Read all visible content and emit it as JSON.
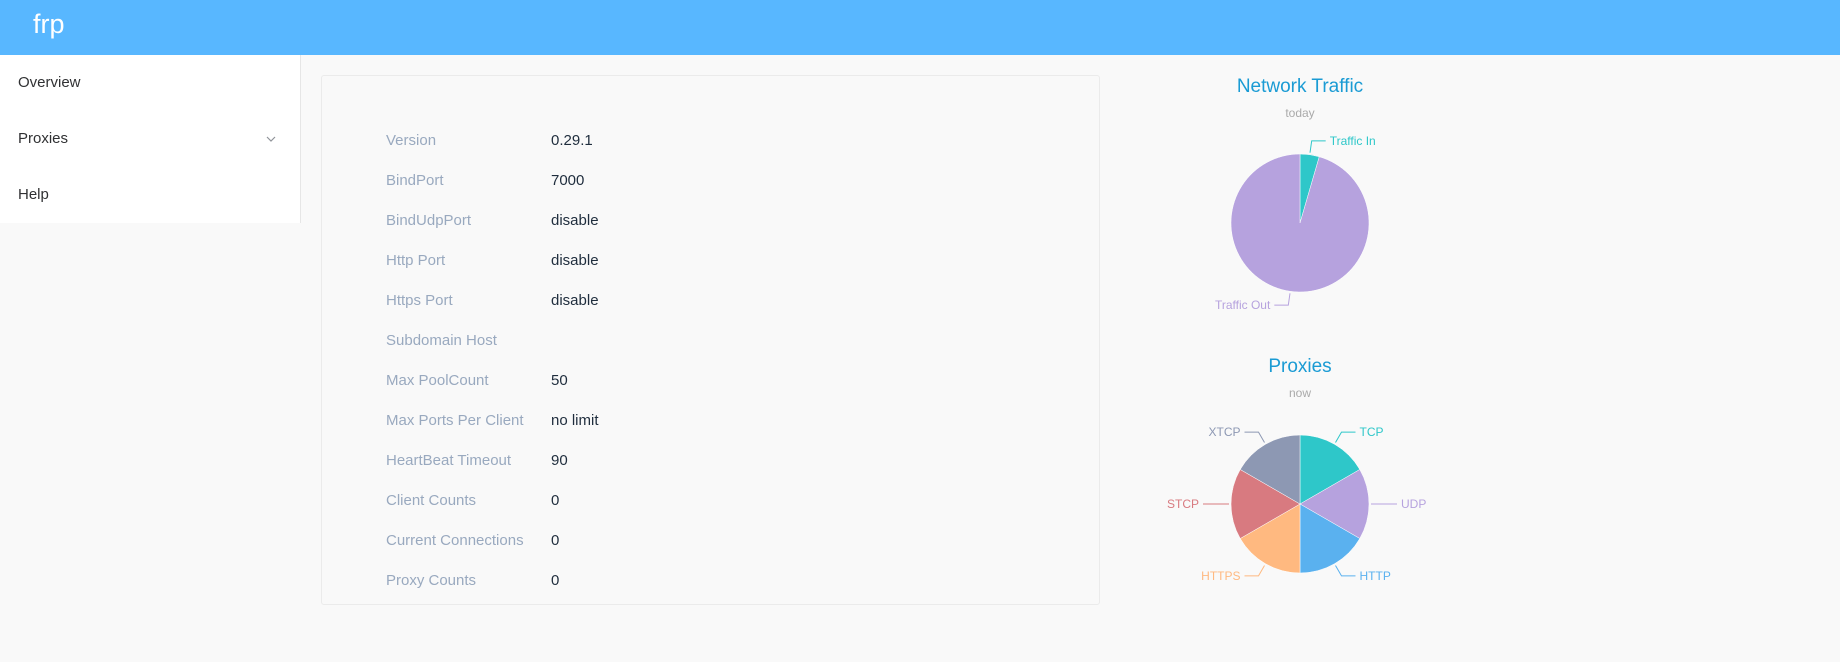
{
  "app": {
    "brand": "frp"
  },
  "sidebar": {
    "items": [
      {
        "label": "Overview"
      },
      {
        "label": "Proxies"
      },
      {
        "label": "Help"
      }
    ]
  },
  "overview": {
    "rows": [
      {
        "label": "Version",
        "value": "0.29.1"
      },
      {
        "label": "BindPort",
        "value": "7000"
      },
      {
        "label": "BindUdpPort",
        "value": "disable"
      },
      {
        "label": "Http Port",
        "value": "disable"
      },
      {
        "label": "Https Port",
        "value": "disable"
      },
      {
        "label": "Subdomain Host",
        "value": ""
      },
      {
        "label": "Max PoolCount",
        "value": "50"
      },
      {
        "label": "Max Ports Per Client",
        "value": "no limit"
      },
      {
        "label": "HeartBeat Timeout",
        "value": "90"
      },
      {
        "label": "Client Counts",
        "value": "0"
      },
      {
        "label": "Current Connections",
        "value": "0"
      },
      {
        "label": "Proxy Counts",
        "value": "0"
      }
    ]
  },
  "colors": {
    "topbar": "#58b7ff",
    "traffic_in": "#2ec7c9",
    "traffic_out": "#b6a2de",
    "tcp": "#2ec7c9",
    "udp": "#b6a2de",
    "http": "#5ab1ef",
    "https": "#ffb980",
    "stcp": "#d87a80",
    "xtcp": "#8d98b3"
  },
  "chart_data": [
    {
      "type": "pie",
      "title": "Network Traffic",
      "subtitle": "today",
      "categories": [
        "Traffic In",
        "Traffic Out"
      ],
      "values": [
        4.5,
        95.5
      ],
      "colors": [
        "#2ec7c9",
        "#b6a2de"
      ]
    },
    {
      "type": "pie",
      "title": "Proxies",
      "subtitle": "now",
      "categories": [
        "TCP",
        "UDP",
        "HTTP",
        "HTTPS",
        "STCP",
        "XTCP"
      ],
      "values": [
        1,
        1,
        1,
        1,
        1,
        1
      ],
      "colors": [
        "#2ec7c9",
        "#b6a2de",
        "#5ab1ef",
        "#ffb980",
        "#d87a80",
        "#8d98b3"
      ]
    }
  ]
}
